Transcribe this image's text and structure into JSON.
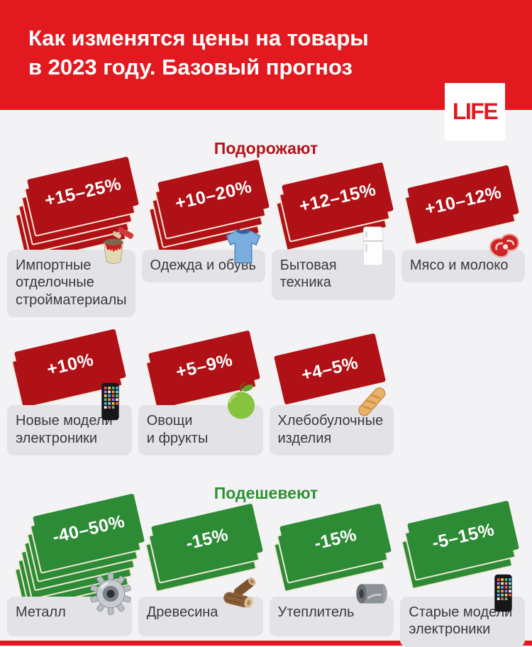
{
  "header": {
    "title": "Как изменятся цены на товары\nв 2023 году. Базовый прогноз",
    "logo_text": "LIFE"
  },
  "colors": {
    "brand_red": "#e2191f",
    "tag_red": "#b01116",
    "tag_green": "#2e8b35",
    "section_up_title": "#b5121b",
    "section_down_title": "#2f9133",
    "tag_edge_cream": "#f1ead7",
    "label_bg": "#e3e3e7",
    "label_text": "#3a3a3c",
    "page_bg": "#f3f3f5"
  },
  "sections": [
    {
      "title": "Подорожают",
      "direction": "increase",
      "accent_color": "#b01116",
      "cards": [
        {
          "value": "+15–25%",
          "layers": 5,
          "label": "Импортные\nотделочные\nстройматериалы",
          "icon": "paint-can"
        },
        {
          "value": "+10–20%",
          "layers": 4,
          "label": "Одежда и обувь",
          "icon": "t-shirt"
        },
        {
          "value": "+12–15%",
          "layers": 3,
          "label": "Бытовая\nтехника",
          "icon": "refrigerator"
        },
        {
          "value": "+10–12%",
          "layers": 2,
          "label": "Мясо и молоко",
          "icon": "meat"
        },
        {
          "value": "+10%",
          "layers": 2,
          "label": "Новые модели\nэлектроники",
          "icon": "smartphone"
        },
        {
          "value": "+5–9%",
          "layers": 2,
          "label": "Овощи\nи фрукты",
          "icon": "green-apple"
        },
        {
          "value": "+4–5%",
          "layers": 1,
          "label": "Хлебобулочные\nизделия",
          "icon": "baguette"
        }
      ]
    },
    {
      "title": "Подешевеют",
      "direction": "decrease",
      "accent_color": "#2e8b35",
      "cards": [
        {
          "value": "-40–50%",
          "layers": 7,
          "label": "Металл",
          "icon": "gear"
        },
        {
          "value": "-15%",
          "layers": 3,
          "label": "Древесина",
          "icon": "wood-logs"
        },
        {
          "value": "-15%",
          "layers": 3,
          "label": "Утеплитель",
          "icon": "insulation-roll"
        },
        {
          "value": "-5–15%",
          "layers": 3,
          "label": "Старые модели\nэлектроники",
          "icon": "smartphone"
        }
      ]
    }
  ],
  "chart_data": {
    "type": "table",
    "title": "Как изменятся цены на товары в 2023 году. Базовый прогноз",
    "groups": [
      {
        "name": "Подорожают",
        "items": [
          {
            "category": "Импортные отделочные стройматериалы",
            "change": "+15–25%"
          },
          {
            "category": "Одежда и обувь",
            "change": "+10–20%"
          },
          {
            "category": "Бытовая техника",
            "change": "+12–15%"
          },
          {
            "category": "Мясо и молоко",
            "change": "+10–12%"
          },
          {
            "category": "Новые модели электроники",
            "change": "+10%"
          },
          {
            "category": "Овощи и фрукты",
            "change": "+5–9%"
          },
          {
            "category": "Хлебобулочные изделия",
            "change": "+4–5%"
          }
        ]
      },
      {
        "name": "Подешевеют",
        "items": [
          {
            "category": "Металл",
            "change": "-40–50%"
          },
          {
            "category": "Древесина",
            "change": "-15%"
          },
          {
            "category": "Утеплитель",
            "change": "-15%"
          },
          {
            "category": "Старые модели электроники",
            "change": "-5–15%"
          }
        ]
      }
    ]
  }
}
